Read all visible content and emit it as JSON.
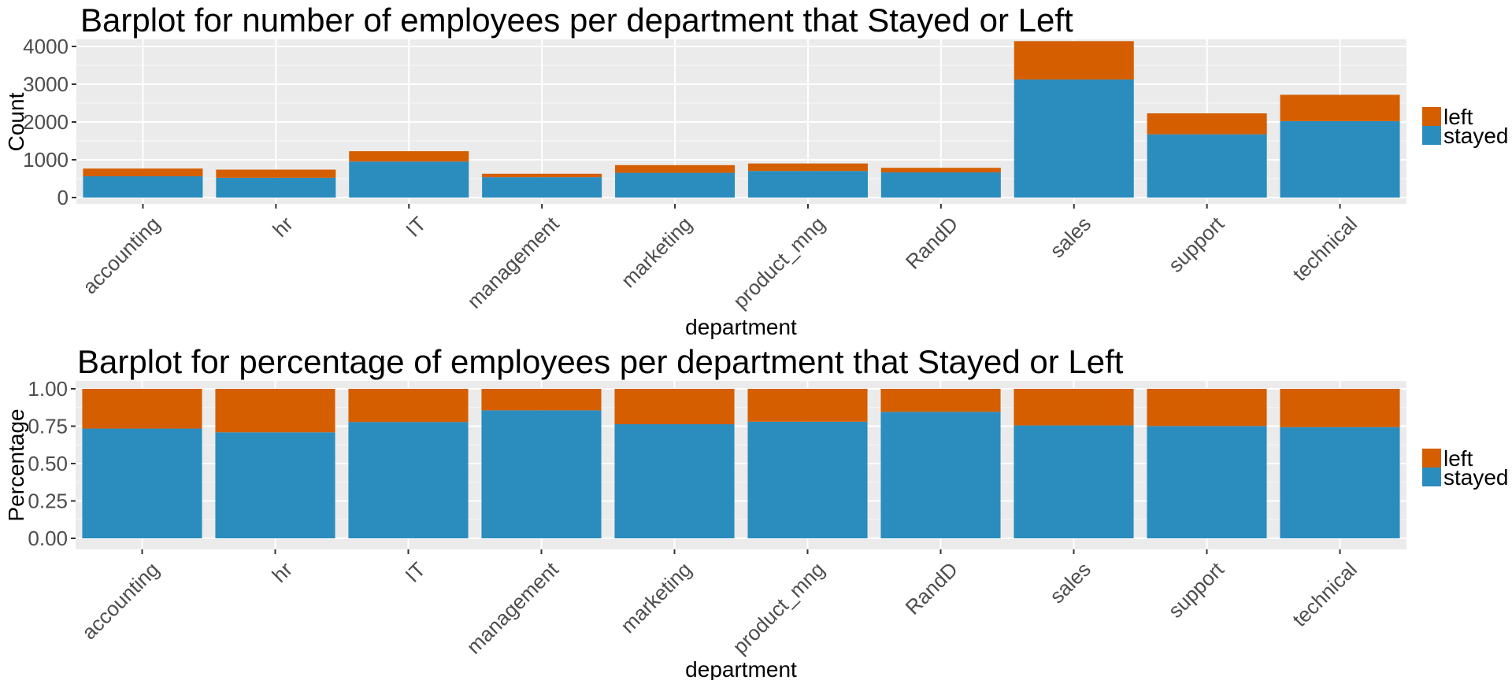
{
  "colors": {
    "left": "#d55e00",
    "stayed": "#2b8cbe",
    "panel_background": "#ebebeb",
    "grid_major": "#ffffff",
    "grid_minor": "#f5f5f5"
  },
  "chart_data": [
    {
      "type": "bar",
      "stacked": true,
      "title": "Barplot for number of employees per department that Stayed or Left",
      "xlabel": "department",
      "ylabel": "Count",
      "categories": [
        "accounting",
        "hr",
        "IT",
        "management",
        "marketing",
        "product_mng",
        "RandD",
        "sales",
        "support",
        "technical"
      ],
      "series": [
        {
          "name": "stayed",
          "values": [
            563,
            524,
            954,
            539,
            655,
            704,
            666,
            3126,
            1674,
            2023
          ]
        },
        {
          "name": "left",
          "values": [
            204,
            215,
            273,
            91,
            203,
            198,
            121,
            1014,
            555,
            697
          ]
        }
      ],
      "ylim": [
        0,
        4300
      ],
      "yticks": [
        0,
        1000,
        2000,
        3000,
        4000
      ],
      "ytick_labels": [
        "0",
        "1000",
        "2000",
        "3000",
        "4000"
      ],
      "legend": {
        "position": "right",
        "entries": [
          "left",
          "stayed"
        ]
      },
      "grid": true
    },
    {
      "type": "bar",
      "stacked": true,
      "title": "Barplot for percentage of employees per department that Stayed or Left",
      "xlabel": "department",
      "ylabel": "Percentage",
      "categories": [
        "accounting",
        "hr",
        "IT",
        "management",
        "marketing",
        "product_mng",
        "RandD",
        "sales",
        "support",
        "technical"
      ],
      "series": [
        {
          "name": "stayed",
          "values": [
            0.734,
            0.709,
            0.778,
            0.856,
            0.763,
            0.78,
            0.846,
            0.755,
            0.751,
            0.744
          ]
        },
        {
          "name": "left",
          "values": [
            0.266,
            0.291,
            0.222,
            0.144,
            0.237,
            0.22,
            0.154,
            0.245,
            0.249,
            0.256
          ]
        }
      ],
      "ylim": [
        -0.04,
        1.04
      ],
      "yticks": [
        0,
        0.25,
        0.5,
        0.75,
        1.0
      ],
      "ytick_labels": [
        "0.00",
        "0.25",
        "0.50",
        "0.75",
        "1.00"
      ],
      "legend": {
        "position": "right",
        "entries": [
          "left",
          "stayed"
        ]
      },
      "grid": true
    }
  ]
}
